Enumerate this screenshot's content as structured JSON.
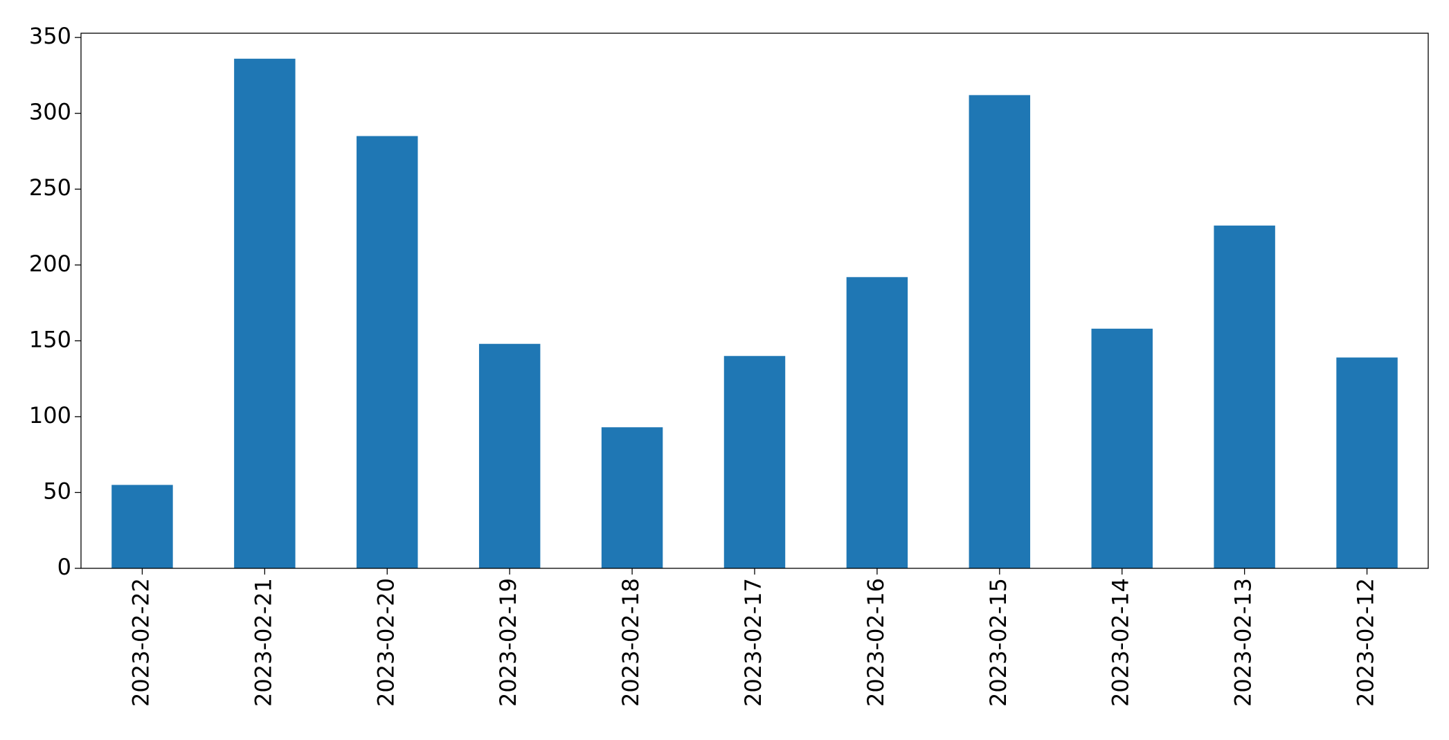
{
  "chart_data": {
    "type": "bar",
    "categories": [
      "2023-02-22",
      "2023-02-21",
      "2023-02-20",
      "2023-02-19",
      "2023-02-18",
      "2023-02-17",
      "2023-02-16",
      "2023-02-15",
      "2023-02-14",
      "2023-02-13",
      "2023-02-12"
    ],
    "values": [
      55,
      336,
      285,
      148,
      93,
      140,
      192,
      312,
      158,
      226,
      139
    ],
    "color": "#1f77b4",
    "ylim": [
      0,
      352.8
    ],
    "yticks": [
      0,
      50,
      100,
      150,
      200,
      250,
      300,
      350
    ],
    "grid": false
  }
}
